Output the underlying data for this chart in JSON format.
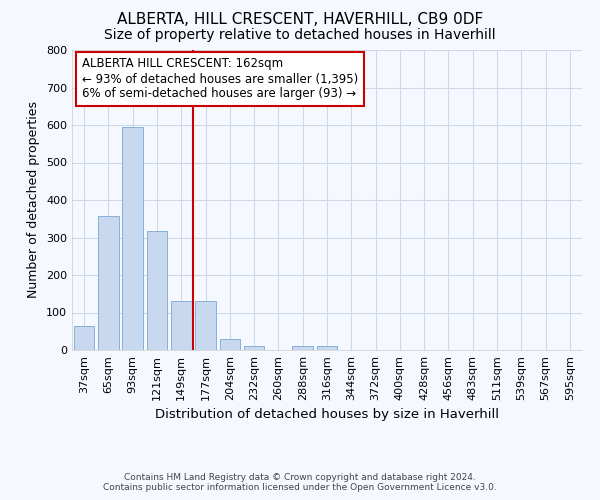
{
  "title": "ALBERTA, HILL CRESCENT, HAVERHILL, CB9 0DF",
  "subtitle": "Size of property relative to detached houses in Haverhill",
  "xlabel": "Distribution of detached houses by size in Haverhill",
  "ylabel": "Number of detached properties",
  "footer_line1": "Contains HM Land Registry data © Crown copyright and database right 2024.",
  "footer_line2": "Contains public sector information licensed under the Open Government Licence v3.0.",
  "bin_labels": [
    "37sqm",
    "65sqm",
    "93sqm",
    "121sqm",
    "149sqm",
    "177sqm",
    "204sqm",
    "232sqm",
    "260sqm",
    "288sqm",
    "316sqm",
    "344sqm",
    "372sqm",
    "400sqm",
    "428sqm",
    "456sqm",
    "483sqm",
    "511sqm",
    "539sqm",
    "567sqm",
    "595sqm"
  ],
  "bar_values": [
    65,
    358,
    595,
    318,
    130,
    130,
    30,
    10,
    0,
    10,
    10,
    0,
    0,
    0,
    0,
    0,
    0,
    0,
    0,
    0,
    0
  ],
  "bar_color": "#c8d8ee",
  "bar_edge_color": "#7aa8d4",
  "vline_x": 4.5,
  "vline_color": "#cc0000",
  "annotation_title": "ALBERTA HILL CRESCENT: 162sqm",
  "annotation_line1": "← 93% of detached houses are smaller (1,395)",
  "annotation_line2": "6% of semi-detached houses are larger (93) →",
  "annotation_box_color": "#cc0000",
  "ylim": [
    0,
    800
  ],
  "yticks": [
    0,
    100,
    200,
    300,
    400,
    500,
    600,
    700,
    800
  ],
  "fig_bg_color": "#f5f8ff",
  "plot_bg_color": "#f5f8ff",
  "grid_color": "#d0d8e8",
  "title_fontsize": 11,
  "subtitle_fontsize": 10,
  "xlabel_fontsize": 9.5,
  "ylabel_fontsize": 9,
  "tick_fontsize": 8,
  "annotation_fontsize": 8.5
}
